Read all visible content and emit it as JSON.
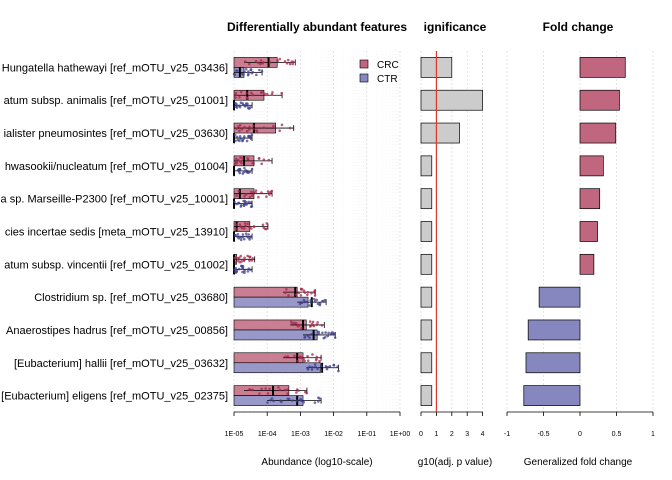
{
  "chart_data": [
    {
      "type": "bar",
      "title": "Differentially abundant features",
      "xlabel": "Abundance (log10-scale)",
      "xscale": "log10",
      "xlim": [
        1e-05,
        1
      ],
      "xticks": [
        "1E-05",
        "1E-04",
        "1E-03",
        "1E-02",
        "1E-01",
        "1E+00"
      ],
      "categories": [
        "Hungatella hathewayi [ref_mOTU_v25_03436]",
        "atum subsp. animalis [ref_mOTU_v25_01001]",
        "ialister pneumosintes [ref_mOTU_v25_03630]",
        "hwasookii/nucleatum [ref_mOTU_v25_01004]",
        "a sp. Marseille-P2300 [ref_mOTU_v25_10001]",
        "cies incertae sedis [meta_mOTU_v25_13910]",
        "atum subsp. vincentii [ref_mOTU_v25_01002]",
        "Clostridium sp. [ref_mOTU_v25_03680]",
        "Anaerostipes hadrus [ref_mOTU_v25_00856]",
        "[Eubacterium] hallii [ref_mOTU_v25_03632]",
        "[Eubacterium] eligens [ref_mOTU_v25_02375]"
      ],
      "legend": {
        "position": "top-right",
        "entries": [
          "CRC",
          "CTR"
        ]
      },
      "series": [
        {
          "name": "CRC",
          "color": "#c0677f",
          "values": [
            0.0002,
            8e-05,
            0.00018,
            4e-05,
            4e-05,
            3e-05,
            1.2e-05,
            0.0008,
            0.0015,
            0.0012,
            0.00045
          ],
          "q25": [
            2e-05,
            1e-05,
            1e-05,
            1e-05,
            1e-05,
            1e-05,
            1e-05,
            0.0003,
            0.0005,
            0.0003,
            2e-05
          ],
          "median": [
            0.00011,
            2.5e-05,
            4e-05,
            2e-05,
            1.5e-05,
            1.2e-05,
            1e-05,
            0.0007,
            0.0012,
            0.0008,
            0.00015
          ]
        },
        {
          "name": "CTR",
          "color": "#8787bf",
          "values": [
            2e-05,
            1e-05,
            1e-05,
            1e-05,
            1e-05,
            1e-05,
            1e-05,
            0.0017,
            0.0032,
            0.004,
            0.0012
          ],
          "q25": [
            1e-05,
            1e-05,
            1e-05,
            1e-05,
            1e-05,
            1e-05,
            1e-05,
            0.0008,
            0.0012,
            0.0015,
            0.0001
          ],
          "median": [
            1.5e-05,
            1e-05,
            1e-05,
            1e-05,
            1e-05,
            1e-05,
            1e-05,
            0.0022,
            0.0025,
            0.0045,
            0.0008
          ]
        }
      ]
    },
    {
      "type": "bar",
      "title": "ignificance",
      "xlabel": "g10(adj. p value)",
      "xlim": [
        0,
        5
      ],
      "xticks": [
        "0",
        "1",
        "2",
        "3",
        "4"
      ],
      "threshold": 1,
      "values": [
        2.0,
        4.0,
        2.5,
        0.7,
        0.7,
        0.7,
        0.7,
        0.7,
        0.7,
        0.7,
        0.7
      ]
    },
    {
      "type": "bar",
      "title": "Fold change",
      "xlabel": "Generalized fold change",
      "xlim": [
        -1,
        1
      ],
      "xticks": [
        "-1",
        "-0.5",
        "0",
        "0.5",
        "1"
      ],
      "values": [
        0.62,
        0.54,
        0.49,
        0.32,
        0.27,
        0.24,
        0.19,
        -0.56,
        -0.71,
        -0.74,
        -0.77
      ]
    }
  ]
}
